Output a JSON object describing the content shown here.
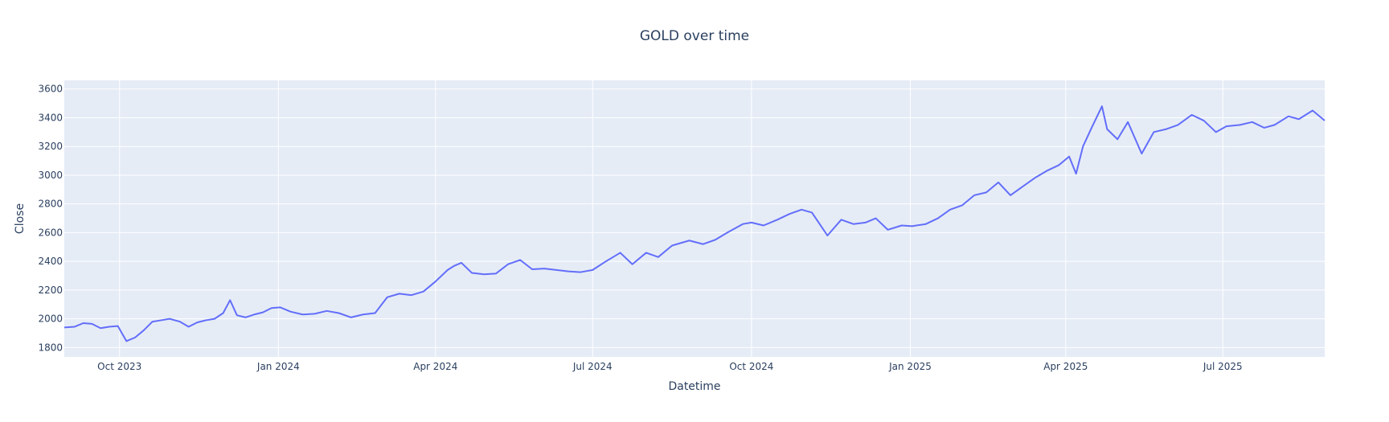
{
  "chart_data": {
    "type": "line",
    "title": "GOLD over time",
    "xlabel": "Datetime",
    "ylabel": "Close",
    "xlim": [
      "2023-08-30",
      "2025-08-29"
    ],
    "ylim": [
      1735,
      3660
    ],
    "grid": true,
    "legend": "none",
    "line_color": "#636efa",
    "plot_background": "#e5ecf6",
    "y_ticks": [
      1800,
      2000,
      2200,
      2400,
      2600,
      2800,
      3000,
      3200,
      3400,
      3600
    ],
    "y_tick_labels": [
      "1800",
      "2000",
      "2200",
      "2400",
      "2600",
      "2800",
      "3000",
      "3200",
      "3400",
      "3600"
    ],
    "x_ticks": [
      "2023-10-01",
      "2024-01-01",
      "2024-04-01",
      "2024-07-01",
      "2024-10-01",
      "2025-01-01",
      "2025-04-01",
      "2025-07-01"
    ],
    "x_tick_labels": [
      "Oct 2023",
      "Jan 2024",
      "Apr 2024",
      "Jul 2024",
      "Oct 2024",
      "Jan 2025",
      "Apr 2025",
      "Jul 2025"
    ],
    "series": [
      {
        "x": [
          "2023-08-30",
          "2023-09-05",
          "2023-09-10",
          "2023-09-15",
          "2023-09-20",
          "2023-09-25",
          "2023-09-30",
          "2023-10-05",
          "2023-10-10",
          "2023-10-15",
          "2023-10-20",
          "2023-10-25",
          "2023-10-30",
          "2023-11-05",
          "2023-11-10",
          "2023-11-15",
          "2023-11-20",
          "2023-11-25",
          "2023-11-30",
          "2023-12-04",
          "2023-12-08",
          "2023-12-13",
          "2023-12-18",
          "2023-12-23",
          "2023-12-28",
          "2024-01-02",
          "2024-01-08",
          "2024-01-15",
          "2024-01-22",
          "2024-01-29",
          "2024-02-05",
          "2024-02-12",
          "2024-02-19",
          "2024-02-26",
          "2024-03-04",
          "2024-03-11",
          "2024-03-18",
          "2024-03-25",
          "2024-04-01",
          "2024-04-08",
          "2024-04-12",
          "2024-04-16",
          "2024-04-22",
          "2024-04-29",
          "2024-05-06",
          "2024-05-13",
          "2024-05-20",
          "2024-05-27",
          "2024-06-03",
          "2024-06-10",
          "2024-06-17",
          "2024-06-24",
          "2024-07-01",
          "2024-07-08",
          "2024-07-17",
          "2024-07-24",
          "2024-08-01",
          "2024-08-08",
          "2024-08-16",
          "2024-08-26",
          "2024-09-03",
          "2024-09-10",
          "2024-09-17",
          "2024-09-26",
          "2024-10-01",
          "2024-10-08",
          "2024-10-16",
          "2024-10-23",
          "2024-10-30",
          "2024-11-05",
          "2024-11-14",
          "2024-11-22",
          "2024-11-29",
          "2024-12-06",
          "2024-12-12",
          "2024-12-19",
          "2024-12-27",
          "2025-01-02",
          "2025-01-10",
          "2025-01-17",
          "2025-01-24",
          "2025-01-31",
          "2025-02-07",
          "2025-02-14",
          "2025-02-21",
          "2025-02-28",
          "2025-03-07",
          "2025-03-14",
          "2025-03-21",
          "2025-03-28",
          "2025-04-03",
          "2025-04-07",
          "2025-04-11",
          "2025-04-16",
          "2025-04-22",
          "2025-04-25",
          "2025-05-01",
          "2025-05-07",
          "2025-05-15",
          "2025-05-22",
          "2025-05-29",
          "2025-06-05",
          "2025-06-13",
          "2025-06-20",
          "2025-06-27",
          "2025-07-03",
          "2025-07-11",
          "2025-07-18",
          "2025-07-25",
          "2025-07-31",
          "2025-08-08",
          "2025-08-14",
          "2025-08-22",
          "2025-08-29"
        ],
        "y": [
          1940,
          1945,
          1970,
          1965,
          1935,
          1945,
          1950,
          1845,
          1870,
          1920,
          1980,
          1990,
          2000,
          1980,
          1945,
          1975,
          1990,
          2000,
          2040,
          2130,
          2025,
          2010,
          2030,
          2045,
          2075,
          2080,
          2050,
          2030,
          2035,
          2055,
          2040,
          2010,
          2030,
          2040,
          2150,
          2175,
          2165,
          2190,
          2260,
          2340,
          2370,
          2390,
          2320,
          2310,
          2315,
          2380,
          2410,
          2345,
          2350,
          2340,
          2330,
          2325,
          2340,
          2395,
          2460,
          2380,
          2460,
          2430,
          2510,
          2545,
          2520,
          2550,
          2600,
          2660,
          2670,
          2650,
          2690,
          2730,
          2760,
          2740,
          2580,
          2690,
          2660,
          2670,
          2700,
          2620,
          2650,
          2645,
          2660,
          2700,
          2760,
          2790,
          2860,
          2880,
          2950,
          2860,
          2920,
          2980,
          3030,
          3070,
          3130,
          3010,
          3200,
          3330,
          3480,
          3320,
          3250,
          3370,
          3150,
          3300,
          3320,
          3350,
          3420,
          3380,
          3300,
          3340,
          3350,
          3370,
          3330,
          3350,
          3410,
          3390,
          3450,
          3380
        ]
      }
    ]
  }
}
